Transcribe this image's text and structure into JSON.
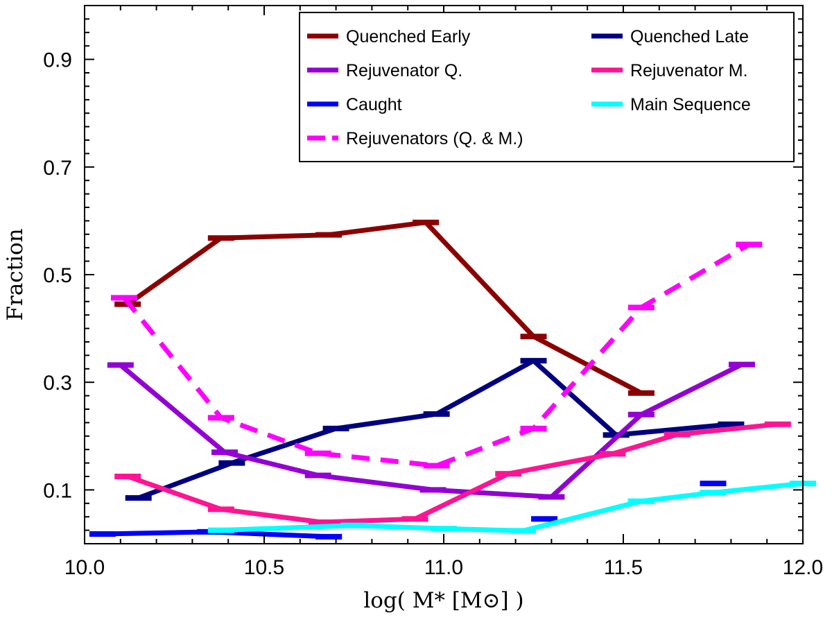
{
  "chart_data": {
    "type": "line",
    "title": "",
    "xlabel": "log( M* [M⊙] )",
    "ylabel": "Fraction",
    "xlim": [
      10.0,
      12.0
    ],
    "ylim": [
      0.0,
      1.0
    ],
    "xticks": [
      10.0,
      10.5,
      11.0,
      11.5,
      12.0
    ],
    "xtick_labels": [
      "10.0",
      "10.5",
      "11.0",
      "11.5",
      "12.0"
    ],
    "yticks": [
      0.1,
      0.3,
      0.5,
      0.7,
      0.9
    ],
    "ytick_labels": [
      "0.1",
      "0.3",
      "0.5",
      "0.7",
      "0.9"
    ],
    "grid": false,
    "legend_position": "top-right",
    "series": [
      {
        "name": "Quenched Early",
        "color": "#8b0000",
        "dashed": false,
        "x": [
          10.12,
          10.38,
          10.68,
          10.95,
          11.25,
          11.55
        ],
        "y": [
          0.445,
          0.568,
          0.574,
          0.597,
          0.385,
          0.28
        ]
      },
      {
        "name": "Quenched Late",
        "color": "#000080",
        "dashed": false,
        "x": [
          10.15,
          10.41,
          10.7,
          10.98,
          11.25,
          11.48,
          11.8
        ],
        "y": [
          0.085,
          0.15,
          0.214,
          0.241,
          0.34,
          0.202,
          0.222
        ]
      },
      {
        "name": "Rejuvenator Q.",
        "color": "#9400d3",
        "dashed": false,
        "x": [
          10.1,
          10.39,
          10.65,
          10.97,
          11.3,
          11.55,
          11.83
        ],
        "y": [
          0.332,
          0.17,
          0.127,
          0.1,
          0.087,
          0.24,
          0.333
        ]
      },
      {
        "name": "Rejuvenator M.",
        "color": "#ff1493",
        "dashed": false,
        "x": [
          10.12,
          10.38,
          10.66,
          10.92,
          11.18,
          11.47,
          11.65,
          11.93
        ],
        "y": [
          0.125,
          0.064,
          0.04,
          0.046,
          0.13,
          0.167,
          0.203,
          0.222
        ]
      },
      {
        "name": "Caught",
        "color": "#0000ff",
        "dashed": false,
        "x": [
          10.05,
          10.35,
          10.68
        ],
        "y": [
          0.018,
          0.022,
          0.013
        ],
        "extra_markers": [
          {
            "x": 11.28,
            "y": 0.046
          },
          {
            "x": 11.75,
            "y": 0.112
          }
        ]
      },
      {
        "name": "Main Sequence",
        "color": "#00ffff",
        "dashed": false,
        "x": [
          10.38,
          10.75,
          11.0,
          11.22,
          11.55,
          11.75,
          12.0
        ],
        "y": [
          0.025,
          0.034,
          0.028,
          0.024,
          0.079,
          0.095,
          0.112
        ]
      },
      {
        "name": "Rejuvenators (Q. & M.)",
        "color": "#ff00ff",
        "dashed": true,
        "x": [
          10.11,
          10.38,
          10.65,
          10.98,
          11.25,
          11.55,
          11.85
        ],
        "y": [
          0.457,
          0.234,
          0.168,
          0.145,
          0.214,
          0.439,
          0.556
        ]
      }
    ]
  }
}
